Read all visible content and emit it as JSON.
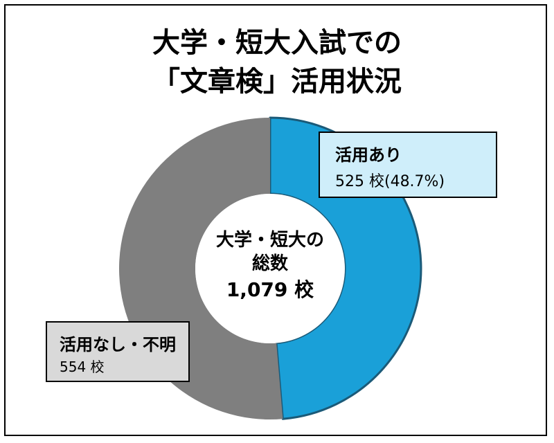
{
  "title": {
    "line1": "大学・短大入試での",
    "line2": "「文章検」活用状況"
  },
  "center": {
    "line1": "大学・短大の",
    "line2": "総数",
    "line3": "1,079 校"
  },
  "chart_data": {
    "type": "pie",
    "variant": "donut",
    "title": "大学・短大入試での「文章検」活用状況",
    "total": 1079,
    "slices": [
      {
        "label": "活用あり",
        "value": 525,
        "percent": 48.7,
        "color": "#1aa0d8"
      },
      {
        "label": "活用なし・不明",
        "value": 554,
        "color": "#7f7f7f"
      }
    ]
  },
  "labels": {
    "yes": {
      "name": "活用あり",
      "value": "525 校(48.7%)"
    },
    "no": {
      "name": "活用なし・不明",
      "value": "554 校"
    }
  }
}
